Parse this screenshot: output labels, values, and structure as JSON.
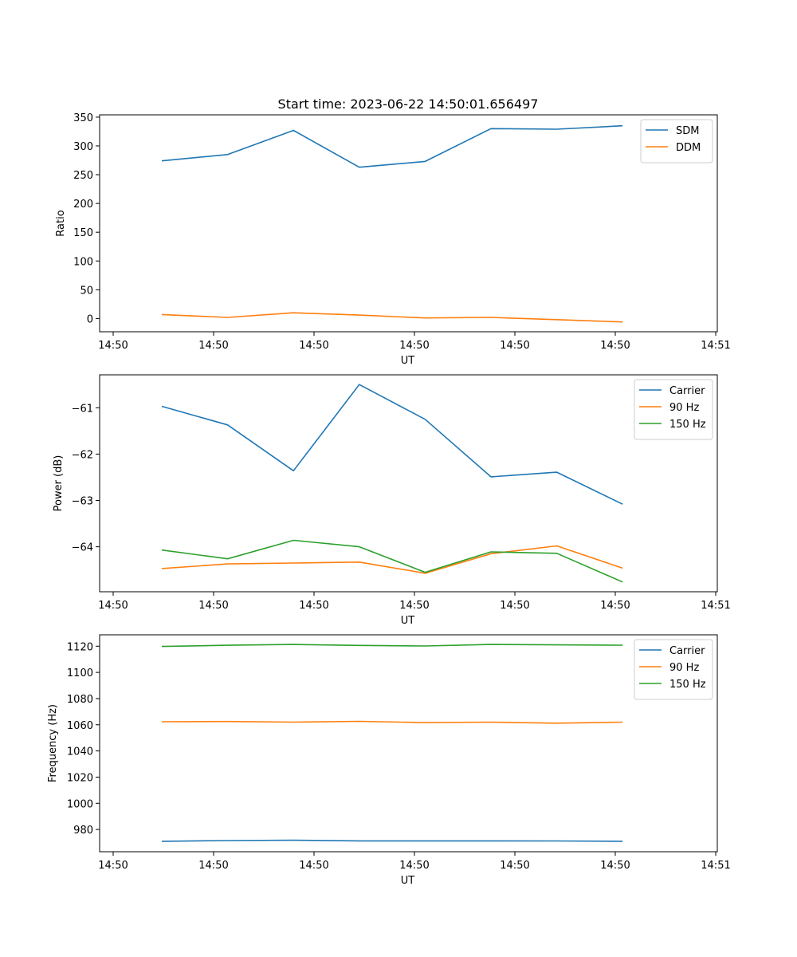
{
  "figure": {
    "title": "Start time: 2023-06-22 14:50:01.656497"
  },
  "colors": {
    "blue": "#1f77b4",
    "orange": "#ff7f0e",
    "green": "#2ca02c",
    "axis": "#000000",
    "legend_border": "#cccccc"
  },
  "chart_data": [
    {
      "type": "line",
      "title": "Start time: 2023-06-22 14:50:01.656497",
      "xlabel": "UT",
      "ylabel": "Ratio",
      "x_tick_labels": [
        "14:50",
        "14:50",
        "14:50",
        "14:50",
        "14:50",
        "14:50",
        "14:51"
      ],
      "y_ticks": [
        0,
        50,
        100,
        150,
        200,
        250,
        300,
        350
      ],
      "ylim": [
        -23,
        354
      ],
      "legend_position": "upper right",
      "grid": false,
      "series": [
        {
          "name": "SDM",
          "color": "#1f77b4",
          "values": [
            274,
            285,
            327,
            263,
            273,
            330,
            329,
            335
          ]
        },
        {
          "name": "DDM",
          "color": "#ff7f0e",
          "values": [
            7,
            2,
            10,
            6,
            1,
            2,
            -2,
            -6
          ]
        }
      ]
    },
    {
      "type": "line",
      "title": "",
      "xlabel": "UT",
      "ylabel": "Power (dB)",
      "x_tick_labels": [
        "14:50",
        "14:50",
        "14:50",
        "14:50",
        "14:50",
        "14:50",
        "14:51"
      ],
      "y_ticks": [
        -64,
        -63,
        -62,
        -61
      ],
      "ylim": [
        -64.97,
        -60.29
      ],
      "legend_position": "upper right",
      "grid": false,
      "series": [
        {
          "name": "Carrier",
          "color": "#1f77b4",
          "values": [
            -60.97,
            -61.37,
            -62.36,
            -60.5,
            -61.25,
            -62.49,
            -62.39,
            -63.08
          ]
        },
        {
          "name": "90 Hz",
          "color": "#ff7f0e",
          "values": [
            -64.47,
            -64.37,
            -64.35,
            -64.33,
            -64.57,
            -64.15,
            -63.98,
            -64.46
          ]
        },
        {
          "name": "150 Hz",
          "color": "#2ca02c",
          "values": [
            -64.07,
            -64.26,
            -63.86,
            -64.0,
            -64.55,
            -64.11,
            -64.14,
            -64.76
          ]
        }
      ]
    },
    {
      "type": "line",
      "title": "",
      "xlabel": "UT",
      "ylabel": "Frequency (Hz)",
      "x_tick_labels": [
        "14:50",
        "14:50",
        "14:50",
        "14:50",
        "14:50",
        "14:50",
        "14:51"
      ],
      "y_ticks": [
        980,
        1000,
        1020,
        1040,
        1060,
        1080,
        1100,
        1120
      ],
      "ylim": [
        963,
        1128.7
      ],
      "legend_position": "upper right",
      "grid": false,
      "series": [
        {
          "name": "Carrier",
          "color": "#1f77b4",
          "values": [
            971,
            971.5,
            971.8,
            971.3,
            971.3,
            971.3,
            971.2,
            971
          ]
        },
        {
          "name": "90 Hz",
          "color": "#ff7f0e",
          "values": [
            1062.3,
            1062.5,
            1062,
            1062.6,
            1061.6,
            1062,
            1061.2,
            1062
          ]
        },
        {
          "name": "150 Hz",
          "color": "#2ca02c",
          "values": [
            1119.8,
            1120.7,
            1121.3,
            1120.6,
            1120.2,
            1121.3,
            1121,
            1120.8
          ]
        }
      ]
    }
  ]
}
